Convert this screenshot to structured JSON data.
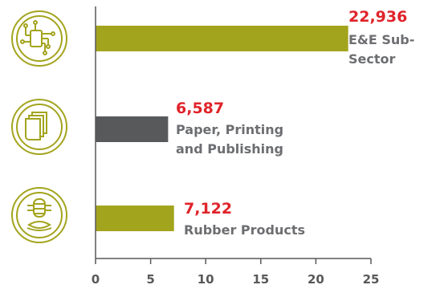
{
  "chart_data": {
    "type": "bar",
    "orientation": "horizontal",
    "categories": [
      "E&E Sub-Sector",
      "Paper, Printing and Publishing",
      "Rubber Products"
    ],
    "category_label_lines": [
      [
        "E&E Sub-",
        "Sector"
      ],
      [
        "Paper, Printing",
        "and Publishing"
      ],
      [
        "Rubber Products"
      ]
    ],
    "value_labels": [
      "22,936",
      "6,587",
      "7,122"
    ],
    "values": [
      22.936,
      6.587,
      7.122
    ],
    "xlim": [
      0,
      25
    ],
    "xticks": [
      0,
      5,
      10,
      15,
      20,
      25
    ],
    "grid": false,
    "icons": [
      "circuit-chip-icon",
      "paper-sheets-icon",
      "rubber-tyre-icon"
    ],
    "colors": {
      "bars": [
        "#A3A41E",
        "#58595B",
        "#A3A41E"
      ],
      "value_label": "#E0232A",
      "category_label": "#6D6E71",
      "axis": "#58595B",
      "icon": "#A3A41E"
    }
  }
}
